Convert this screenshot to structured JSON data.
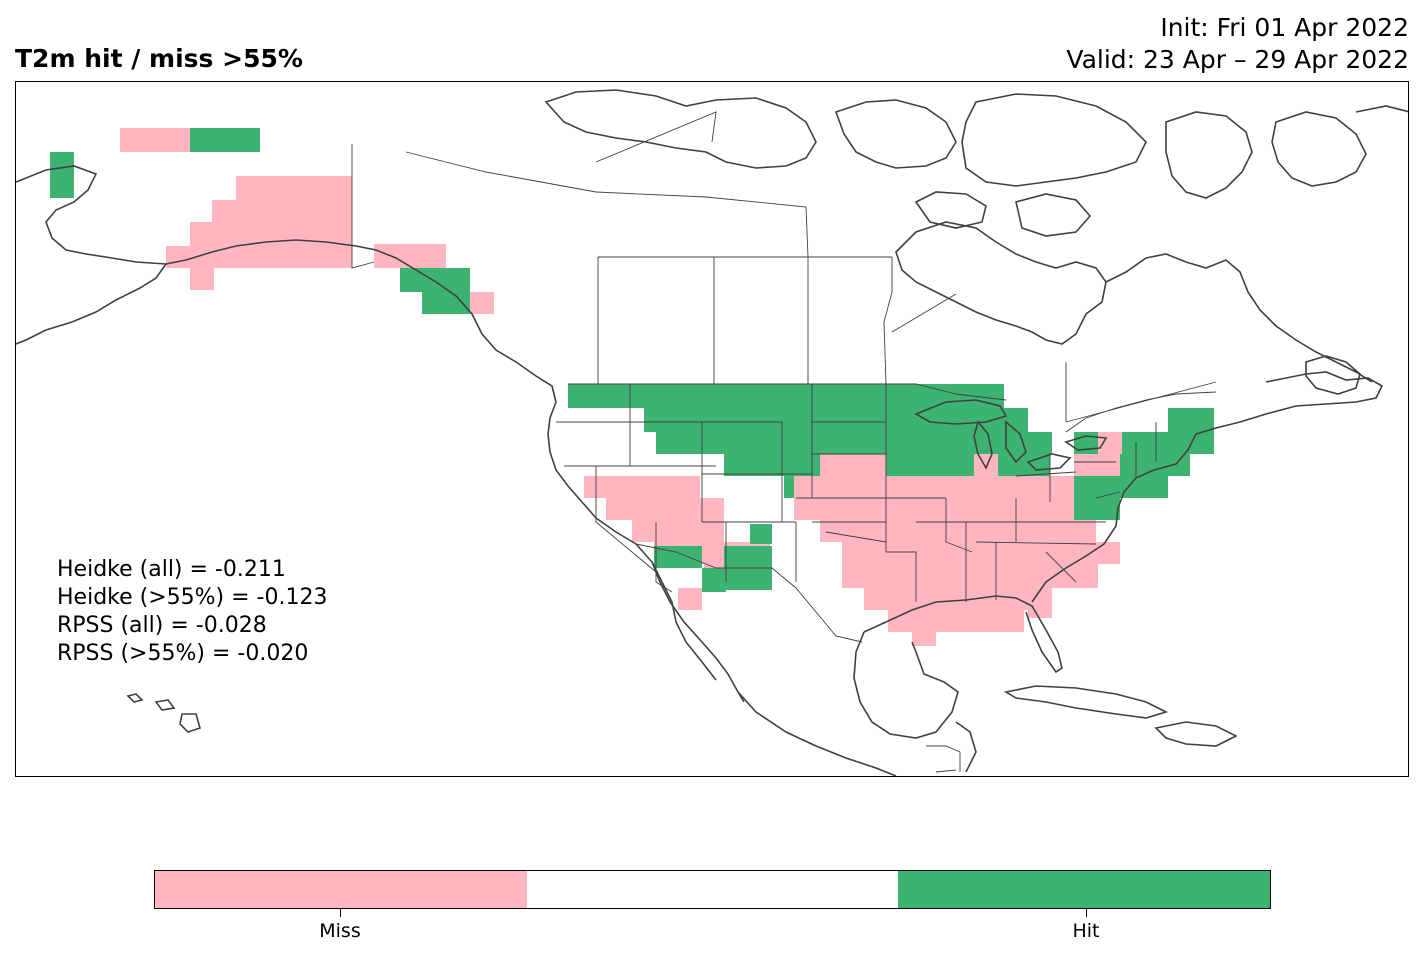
{
  "header": {
    "title": "T2m hit / miss  >55%",
    "init": "Init: Fri 01 Apr 2022",
    "valid": "Valid: 23 Apr – 29 Apr 2022"
  },
  "stats": [
    "Heidke (all) = -0.211",
    "Heidke (>55%) = -0.123",
    "RPSS (all) = -0.028",
    "RPSS (>55%) = -0.020"
  ],
  "legend": {
    "miss_label": "Miss",
    "hit_label": "Hit"
  },
  "colors": {
    "miss": "#ffb6c1",
    "neutral": "#ffffff",
    "hit": "#3cb371",
    "coast": "#404040",
    "border": "#404040"
  },
  "map_data": {
    "region": "North America",
    "cell_classes": [
      "miss",
      "neutral",
      "hit"
    ]
  }
}
